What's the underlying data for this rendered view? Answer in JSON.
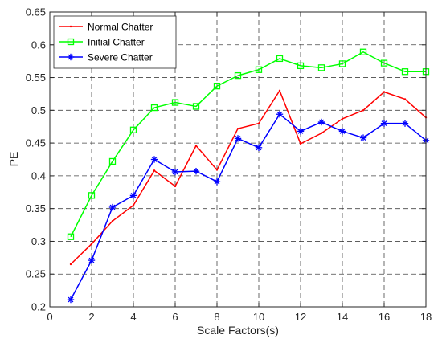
{
  "chart_data": {
    "type": "line",
    "title": "",
    "xlabel": "Scale Factors(s)",
    "ylabel": "PE",
    "xlim": [
      0,
      18
    ],
    "ylim": [
      0.2,
      0.65
    ],
    "xticks": [
      0,
      2,
      4,
      6,
      8,
      10,
      12,
      14,
      16,
      18
    ],
    "yticks": [
      0.2,
      0.25,
      0.3,
      0.35,
      0.4,
      0.45,
      0.5,
      0.55,
      0.6,
      0.65
    ],
    "xtick_labels": [
      "0",
      "2",
      "4",
      "6",
      "8",
      "10",
      "12",
      "14",
      "16",
      "18"
    ],
    "ytick_labels": [
      "0.2",
      "0.25",
      "0.3",
      "0.35",
      "0.4",
      "0.45",
      "0.5",
      "0.55",
      "0.6",
      "0.65"
    ],
    "grid": true,
    "grid_style": "dashed",
    "legend_position": "top-left",
    "x": [
      1,
      2,
      3,
      4,
      5,
      6,
      7,
      8,
      9,
      10,
      11,
      12,
      13,
      14,
      15,
      16,
      17,
      18
    ],
    "series": [
      {
        "name": "Normal Chatter",
        "color": "#ff0000",
        "marker": "point",
        "values": [
          0.265,
          0.296,
          0.331,
          0.355,
          0.408,
          0.384,
          0.446,
          0.409,
          0.472,
          0.48,
          0.53,
          0.449,
          0.465,
          0.487,
          0.5,
          0.528,
          0.517,
          0.489
        ]
      },
      {
        "name": "Initial Chatter",
        "color": "#00ff00",
        "marker": "square",
        "values": [
          0.307,
          0.37,
          0.422,
          0.47,
          0.504,
          0.512,
          0.506,
          0.537,
          0.553,
          0.562,
          0.579,
          0.568,
          0.565,
          0.571,
          0.589,
          0.572,
          0.559,
          0.559
        ]
      },
      {
        "name": "Severe Chatter",
        "color": "#0000ff",
        "marker": "asterisk",
        "values": [
          0.211,
          0.271,
          0.352,
          0.37,
          0.425,
          0.406,
          0.407,
          0.391,
          0.457,
          0.443,
          0.494,
          0.468,
          0.482,
          0.468,
          0.458,
          0.48,
          0.48,
          0.454
        ]
      }
    ]
  }
}
